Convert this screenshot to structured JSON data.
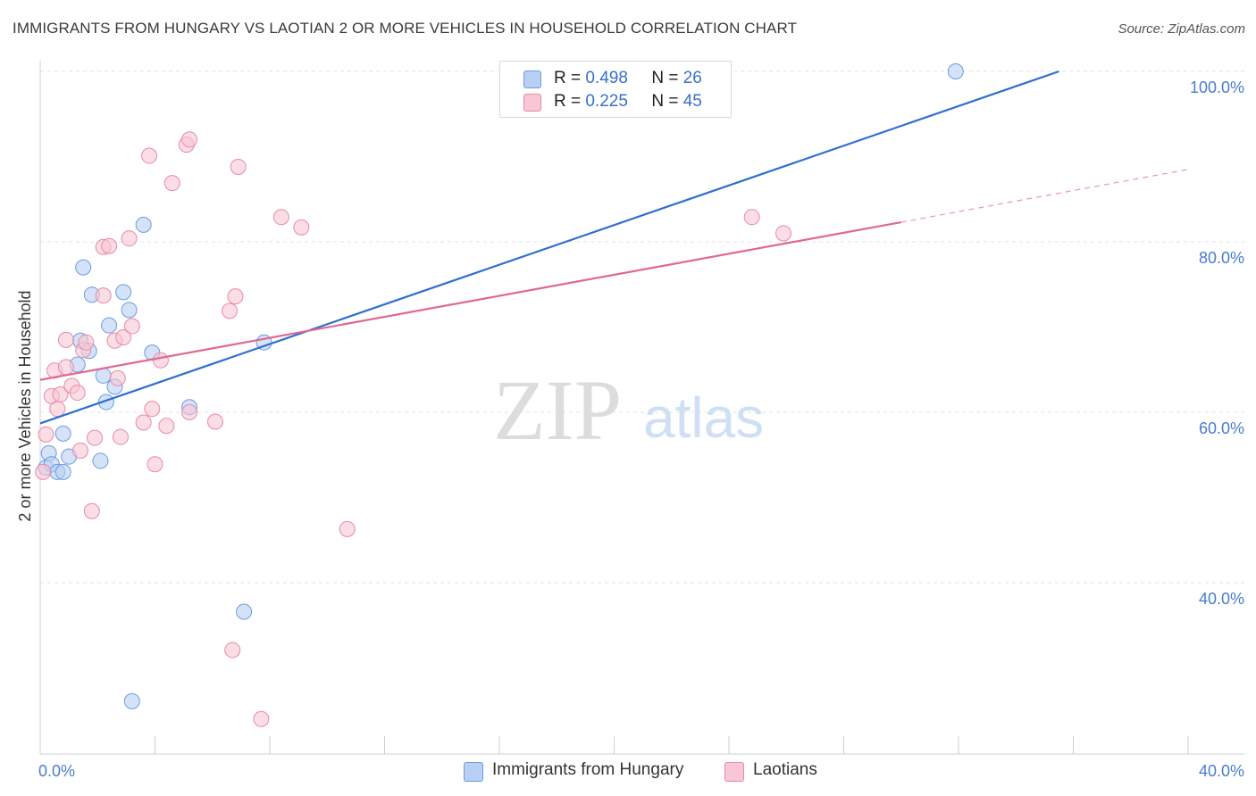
{
  "chart_data": {
    "type": "scatter",
    "title": "IMMIGRANTS FROM HUNGARY VS LAOTIAN 2 OR MORE VEHICLES IN HOUSEHOLD CORRELATION CHART",
    "source": "Source: ZipAtlas.com",
    "xlabel": "",
    "ylabel": "2 or more Vehicles in Household",
    "xlim": [
      0,
      40
    ],
    "ylim": [
      20,
      102
    ],
    "x_tick_labels": [
      "0.0%",
      "40.0%"
    ],
    "y_ticks": [
      40,
      60,
      80,
      100
    ],
    "y_tick_labels": [
      "40.0%",
      "60.0%",
      "80.0%",
      "100.0%"
    ],
    "grid": true,
    "watermark": {
      "zip": "ZIP",
      "atlas": "atlas"
    },
    "colors": {
      "hungary_fill": "#b7d0f3",
      "hungary_stroke": "#6d9be0",
      "hungary_line": "#2f6fd1",
      "laotian_fill": "#f8c6d4",
      "laotian_stroke": "#e78aa6",
      "laotian_line": "#e06890"
    },
    "legend": {
      "rows": [
        {
          "r_label": "R =",
          "r_value": "0.498",
          "n_label": "N =",
          "n_value": "26"
        },
        {
          "r_label": "R =",
          "r_value": "0.225",
          "n_label": "N =",
          "n_value": "45"
        }
      ]
    },
    "series": [
      {
        "name": "Immigrants from Hungary",
        "points": [
          [
            0.2,
            53.5
          ],
          [
            0.3,
            55.2
          ],
          [
            0.4,
            53.9
          ],
          [
            0.6,
            53.0
          ],
          [
            0.8,
            57.5
          ],
          [
            0.8,
            53.0
          ],
          [
            1.0,
            54.8
          ],
          [
            1.3,
            65.6
          ],
          [
            1.4,
            68.4
          ],
          [
            1.5,
            77.0
          ],
          [
            1.7,
            67.2
          ],
          [
            1.8,
            73.8
          ],
          [
            2.1,
            54.3
          ],
          [
            2.2,
            64.3
          ],
          [
            2.3,
            61.2
          ],
          [
            2.4,
            70.2
          ],
          [
            2.6,
            63.0
          ],
          [
            2.9,
            74.1
          ],
          [
            3.1,
            72.0
          ],
          [
            3.2,
            26.1
          ],
          [
            3.6,
            82.0
          ],
          [
            3.9,
            67.0
          ],
          [
            5.2,
            60.6
          ],
          [
            7.1,
            36.6
          ],
          [
            7.8,
            68.2
          ],
          [
            31.9,
            100.0
          ]
        ],
        "trend": {
          "x": [
            0,
            35.5
          ],
          "y": [
            58.7,
            100.0
          ]
        }
      },
      {
        "name": "Laotians",
        "points": [
          [
            0.1,
            53.0
          ],
          [
            0.2,
            57.4
          ],
          [
            0.4,
            61.9
          ],
          [
            0.5,
            64.9
          ],
          [
            0.6,
            60.4
          ],
          [
            0.7,
            62.1
          ],
          [
            0.9,
            65.3
          ],
          [
            0.9,
            68.5
          ],
          [
            1.1,
            63.1
          ],
          [
            1.3,
            62.3
          ],
          [
            1.4,
            55.5
          ],
          [
            1.5,
            67.3
          ],
          [
            1.6,
            68.2
          ],
          [
            1.8,
            48.4
          ],
          [
            1.9,
            57.0
          ],
          [
            2.2,
            73.7
          ],
          [
            2.2,
            79.4
          ],
          [
            2.4,
            79.5
          ],
          [
            2.6,
            68.4
          ],
          [
            2.7,
            64.0
          ],
          [
            2.8,
            57.1
          ],
          [
            2.9,
            68.8
          ],
          [
            3.1,
            80.4
          ],
          [
            3.2,
            70.1
          ],
          [
            3.6,
            58.8
          ],
          [
            3.8,
            90.1
          ],
          [
            3.9,
            60.4
          ],
          [
            4.0,
            53.9
          ],
          [
            4.2,
            66.1
          ],
          [
            4.4,
            58.4
          ],
          [
            4.6,
            86.9
          ],
          [
            5.1,
            91.4
          ],
          [
            5.2,
            92.0
          ],
          [
            5.2,
            60.0
          ],
          [
            6.1,
            58.9
          ],
          [
            6.6,
            71.9
          ],
          [
            6.7,
            32.1
          ],
          [
            6.8,
            73.6
          ],
          [
            6.9,
            88.8
          ],
          [
            7.7,
            24.0
          ],
          [
            8.4,
            82.9
          ],
          [
            9.1,
            81.7
          ],
          [
            10.7,
            46.3
          ],
          [
            24.8,
            82.9
          ],
          [
            25.9,
            81.0
          ]
        ],
        "trend": {
          "x": [
            0,
            30
          ],
          "y": [
            63.8,
            82.3
          ]
        },
        "trend_dashed": {
          "x": [
            30,
            40
          ],
          "y": [
            82.3,
            88.5
          ]
        }
      }
    ]
  }
}
